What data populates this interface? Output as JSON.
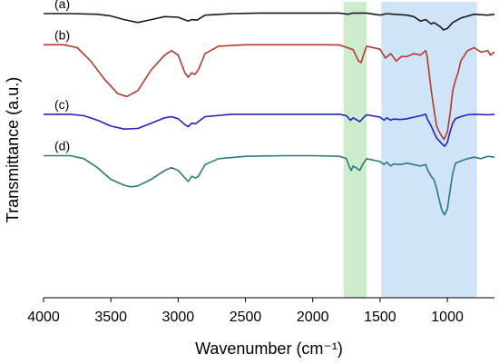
{
  "chart_data": {
    "type": "line",
    "xlabel": "Wavenumber (cm⁻¹)",
    "ylabel": "Transmittance (a.u.)",
    "x_reversed": true,
    "xlim": [
      4000,
      650
    ],
    "ylim": [
      0,
      1
    ],
    "yticks_shown": false,
    "xticks": [
      4000,
      3500,
      3000,
      2500,
      2000,
      1500,
      1000
    ],
    "x_tick_labels": [
      "4000",
      "3500",
      "3000",
      "2500",
      "2000",
      "1500",
      "1000"
    ],
    "highlight_bands": [
      {
        "x_range": [
          1770,
          1600
        ],
        "color": "#cdeccb"
      },
      {
        "x_range": [
          1490,
          780
        ],
        "color": "#cfe4f6"
      }
    ],
    "series": [
      {
        "name": "(a)",
        "color": "#1a1a1a",
        "points": [
          [
            4000,
            0.96
          ],
          [
            3800,
            0.96
          ],
          [
            3600,
            0.958
          ],
          [
            3500,
            0.952
          ],
          [
            3400,
            0.94
          ],
          [
            3300,
            0.93
          ],
          [
            3200,
            0.94
          ],
          [
            3100,
            0.95
          ],
          [
            3000,
            0.948
          ],
          [
            2925,
            0.935
          ],
          [
            2900,
            0.94
          ],
          [
            2860,
            0.938
          ],
          [
            2800,
            0.955
          ],
          [
            2600,
            0.96
          ],
          [
            2400,
            0.962
          ],
          [
            2200,
            0.962
          ],
          [
            2000,
            0.962
          ],
          [
            1800,
            0.962
          ],
          [
            1740,
            0.958
          ],
          [
            1700,
            0.962
          ],
          [
            1600,
            0.962
          ],
          [
            1500,
            0.955
          ],
          [
            1450,
            0.96
          ],
          [
            1400,
            0.958
          ],
          [
            1300,
            0.955
          ],
          [
            1250,
            0.95
          ],
          [
            1200,
            0.935
          ],
          [
            1160,
            0.94
          ],
          [
            1120,
            0.925
          ],
          [
            1100,
            0.93
          ],
          [
            1050,
            0.915
          ],
          [
            1030,
            0.905
          ],
          [
            1000,
            0.91
          ],
          [
            960,
            0.93
          ],
          [
            900,
            0.945
          ],
          [
            800,
            0.958
          ],
          [
            700,
            0.955
          ],
          [
            650,
            0.958
          ]
        ]
      },
      {
        "name": "(b)",
        "color": "#b03a2e",
        "points": [
          [
            4000,
            0.855
          ],
          [
            3850,
            0.855
          ],
          [
            3750,
            0.845
          ],
          [
            3650,
            0.8
          ],
          [
            3550,
            0.74
          ],
          [
            3450,
            0.69
          ],
          [
            3380,
            0.68
          ],
          [
            3300,
            0.7
          ],
          [
            3200,
            0.77
          ],
          [
            3100,
            0.82
          ],
          [
            3050,
            0.835
          ],
          [
            3000,
            0.82
          ],
          [
            2950,
            0.76
          ],
          [
            2925,
            0.745
          ],
          [
            2900,
            0.76
          ],
          [
            2875,
            0.755
          ],
          [
            2850,
            0.77
          ],
          [
            2800,
            0.825
          ],
          [
            2700,
            0.85
          ],
          [
            2500,
            0.855
          ],
          [
            2200,
            0.855
          ],
          [
            2000,
            0.855
          ],
          [
            1900,
            0.855
          ],
          [
            1800,
            0.854
          ],
          [
            1700,
            0.838
          ],
          [
            1660,
            0.8
          ],
          [
            1640,
            0.795
          ],
          [
            1620,
            0.825
          ],
          [
            1600,
            0.85
          ],
          [
            1500,
            0.84
          ],
          [
            1460,
            0.81
          ],
          [
            1420,
            0.825
          ],
          [
            1380,
            0.8
          ],
          [
            1340,
            0.815
          ],
          [
            1300,
            0.815
          ],
          [
            1250,
            0.825
          ],
          [
            1200,
            0.82
          ],
          [
            1160,
            0.835
          ],
          [
            1150,
            0.815
          ],
          [
            1120,
            0.7
          ],
          [
            1100,
            0.64
          ],
          [
            1080,
            0.58
          ],
          [
            1060,
            0.56
          ],
          [
            1040,
            0.545
          ],
          [
            1025,
            0.535
          ],
          [
            1000,
            0.56
          ],
          [
            980,
            0.62
          ],
          [
            960,
            0.7
          ],
          [
            940,
            0.735
          ],
          [
            920,
            0.76
          ],
          [
            900,
            0.8
          ],
          [
            850,
            0.835
          ],
          [
            800,
            0.845
          ],
          [
            750,
            0.83
          ],
          [
            700,
            0.835
          ],
          [
            680,
            0.82
          ],
          [
            650,
            0.83
          ]
        ]
      },
      {
        "name": "(c)",
        "color": "#2222c8",
        "points": [
          [
            4000,
            0.62
          ],
          [
            3800,
            0.62
          ],
          [
            3700,
            0.615
          ],
          [
            3600,
            0.6
          ],
          [
            3500,
            0.58
          ],
          [
            3400,
            0.57
          ],
          [
            3300,
            0.572
          ],
          [
            3200,
            0.59
          ],
          [
            3100,
            0.608
          ],
          [
            3050,
            0.612
          ],
          [
            3000,
            0.605
          ],
          [
            2950,
            0.585
          ],
          [
            2925,
            0.578
          ],
          [
            2900,
            0.59
          ],
          [
            2870,
            0.588
          ],
          [
            2850,
            0.595
          ],
          [
            2800,
            0.612
          ],
          [
            2600,
            0.62
          ],
          [
            2400,
            0.62
          ],
          [
            2200,
            0.62
          ],
          [
            2000,
            0.62
          ],
          [
            1800,
            0.62
          ],
          [
            1750,
            0.615
          ],
          [
            1720,
            0.6
          ],
          [
            1700,
            0.608
          ],
          [
            1650,
            0.595
          ],
          [
            1620,
            0.61
          ],
          [
            1600,
            0.618
          ],
          [
            1500,
            0.61
          ],
          [
            1470,
            0.6
          ],
          [
            1450,
            0.608
          ],
          [
            1420,
            0.6
          ],
          [
            1400,
            0.604
          ],
          [
            1350,
            0.602
          ],
          [
            1300,
            0.605
          ],
          [
            1250,
            0.61
          ],
          [
            1200,
            0.615
          ],
          [
            1160,
            0.62
          ],
          [
            1150,
            0.605
          ],
          [
            1120,
            0.58
          ],
          [
            1100,
            0.56
          ],
          [
            1080,
            0.54
          ],
          [
            1060,
            0.53
          ],
          [
            1040,
            0.52
          ],
          [
            1020,
            0.512
          ],
          [
            1000,
            0.525
          ],
          [
            980,
            0.56
          ],
          [
            960,
            0.59
          ],
          [
            940,
            0.605
          ],
          [
            900,
            0.612
          ],
          [
            850,
            0.618
          ],
          [
            800,
            0.62
          ],
          [
            700,
            0.618
          ],
          [
            650,
            0.62
          ]
        ]
      },
      {
        "name": "(d)",
        "color": "#2a7a7f",
        "points": [
          [
            4000,
            0.48
          ],
          [
            3800,
            0.48
          ],
          [
            3700,
            0.47
          ],
          [
            3600,
            0.44
          ],
          [
            3500,
            0.4
          ],
          [
            3400,
            0.38
          ],
          [
            3350,
            0.375
          ],
          [
            3300,
            0.378
          ],
          [
            3200,
            0.4
          ],
          [
            3100,
            0.43
          ],
          [
            3050,
            0.44
          ],
          [
            3000,
            0.43
          ],
          [
            2950,
            0.405
          ],
          [
            2925,
            0.393
          ],
          [
            2900,
            0.41
          ],
          [
            2870,
            0.405
          ],
          [
            2850,
            0.41
          ],
          [
            2800,
            0.45
          ],
          [
            2700,
            0.47
          ],
          [
            2500,
            0.478
          ],
          [
            2200,
            0.48
          ],
          [
            2000,
            0.48
          ],
          [
            1800,
            0.478
          ],
          [
            1750,
            0.47
          ],
          [
            1730,
            0.445
          ],
          [
            1715,
            0.43
          ],
          [
            1700,
            0.445
          ],
          [
            1680,
            0.44
          ],
          [
            1650,
            0.43
          ],
          [
            1630,
            0.45
          ],
          [
            1600,
            0.47
          ],
          [
            1500,
            0.46
          ],
          [
            1470,
            0.45
          ],
          [
            1450,
            0.458
          ],
          [
            1420,
            0.445
          ],
          [
            1400,
            0.452
          ],
          [
            1350,
            0.45
          ],
          [
            1300,
            0.455
          ],
          [
            1250,
            0.45
          ],
          [
            1200,
            0.445
          ],
          [
            1160,
            0.45
          ],
          [
            1150,
            0.435
          ],
          [
            1120,
            0.41
          ],
          [
            1100,
            0.4
          ],
          [
            1080,
            0.37
          ],
          [
            1060,
            0.33
          ],
          [
            1040,
            0.295
          ],
          [
            1020,
            0.28
          ],
          [
            1000,
            0.3
          ],
          [
            980,
            0.36
          ],
          [
            960,
            0.42
          ],
          [
            940,
            0.455
          ],
          [
            900,
            0.462
          ],
          [
            850,
            0.47
          ],
          [
            800,
            0.475
          ],
          [
            750,
            0.47
          ],
          [
            700,
            0.478
          ],
          [
            650,
            0.475
          ]
        ]
      }
    ]
  }
}
